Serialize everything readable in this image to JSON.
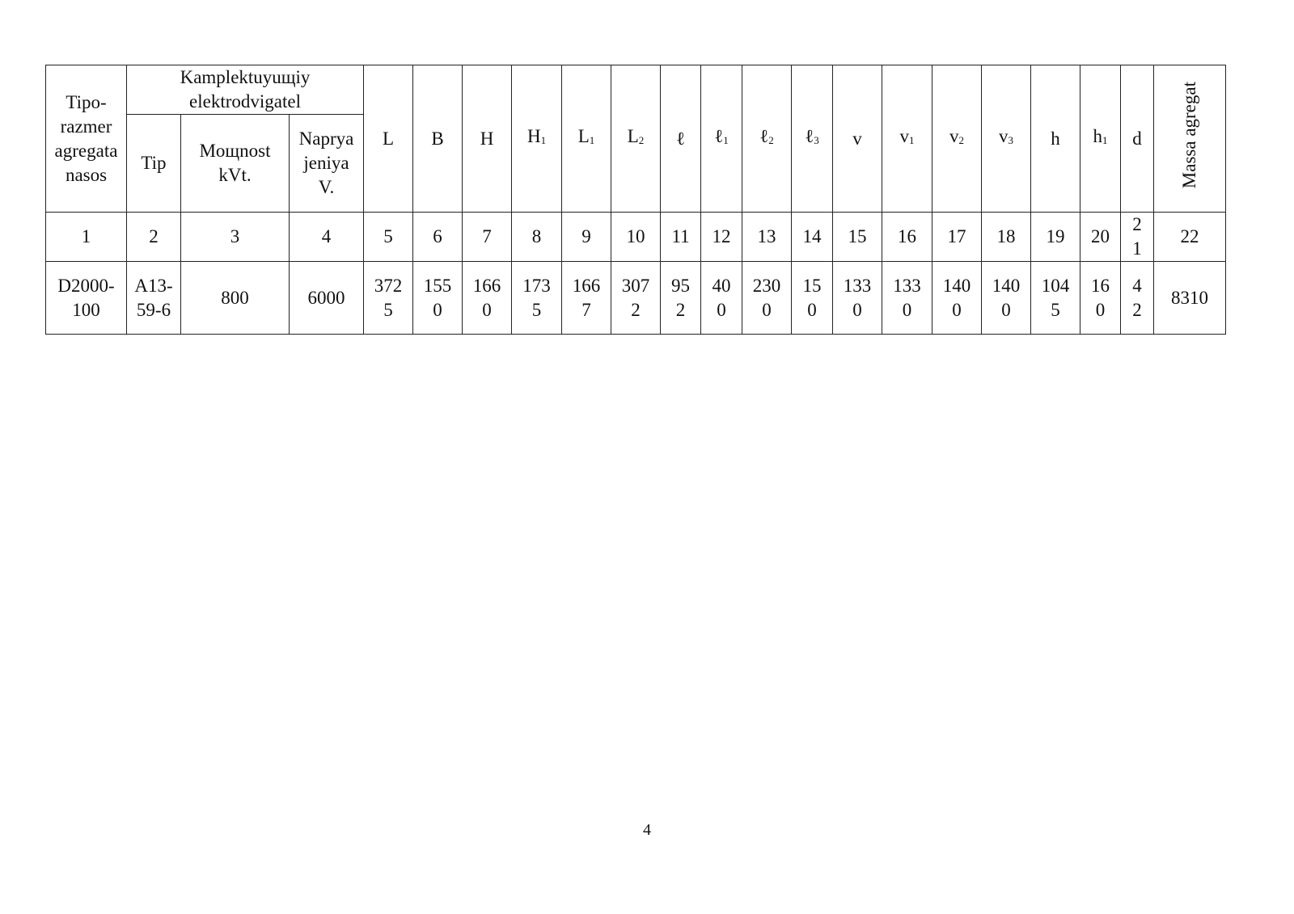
{
  "table": {
    "header": {
      "col1": "Tipo-razmer agregata nasos",
      "group": "Kamplektuyuщiy elektrodvigatel",
      "sub": [
        "Tip",
        "Mощnost kVt.",
        "Naprya jeniya V."
      ],
      "dims": [
        {
          "base": "L",
          "sub": ""
        },
        {
          "base": "B",
          "sub": ""
        },
        {
          "base": "H",
          "sub": ""
        },
        {
          "base": "H",
          "sub": "1"
        },
        {
          "base": "L",
          "sub": "1"
        },
        {
          "base": "L",
          "sub": "2"
        },
        {
          "base": "ℓ",
          "sub": ""
        },
        {
          "base": "ℓ",
          "sub": "1"
        },
        {
          "base": "ℓ",
          "sub": "2"
        },
        {
          "base": "ℓ",
          "sub": "3"
        },
        {
          "base": "v",
          "sub": ""
        },
        {
          "base": "v",
          "sub": "1"
        },
        {
          "base": "v",
          "sub": "2"
        },
        {
          "base": "v",
          "sub": "3"
        },
        {
          "base": "h",
          "sub": ""
        },
        {
          "base": "h",
          "sub": "1"
        },
        {
          "base": "d",
          "sub": ""
        }
      ],
      "mass": "Massa agregat"
    },
    "numbers": [
      "1",
      "2",
      "3",
      "4",
      "5",
      "6",
      "7",
      "8",
      "9",
      "10",
      "11",
      "12",
      "13",
      "14",
      "15",
      "16",
      "17",
      "18",
      "19",
      "20",
      "21",
      "22"
    ],
    "row": [
      "D2000-100",
      "A13-59-6",
      "800",
      "6000",
      "3725",
      "1550",
      "1660",
      "1735",
      "1667",
      "3072",
      "952",
      "400",
      "2300",
      "150",
      "1330",
      "1330",
      "1400",
      "1400",
      "1045",
      "160",
      "42",
      "8310"
    ]
  },
  "page_number": "4"
}
